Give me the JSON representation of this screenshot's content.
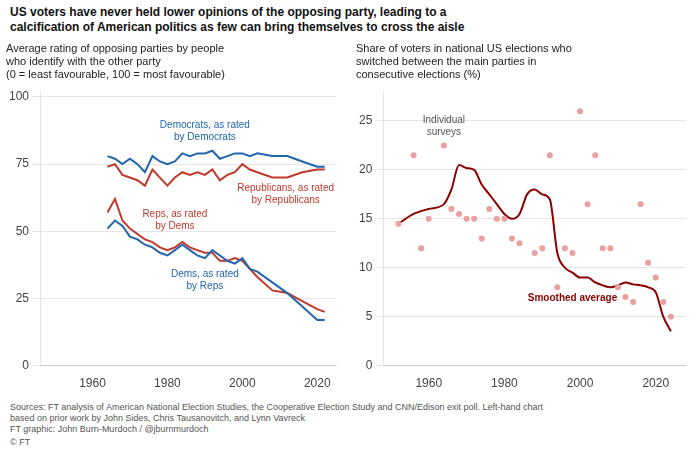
{
  "title": "US voters have never held lower opinions of the opposing party, leading to a\ncalcification of American politics as few can bring themselves to cross the aisle",
  "source": "Sources: FT analysis of American National Election Studies, the Cooperative Election Study and CNN/Edison exit poll. Left-hand chart\nbased on prior work by John Sides, Chris Tausanovitch, and Lynn Vavreck\nFT graphic: John Burn-Murdoch / @jburnmurdoch",
  "footer": "© FT",
  "chart_data": [
    {
      "type": "line",
      "subtitle": "Average rating of opposing parties by people\nwho identify with the other party\n(0 = least favourable, 100 = most favourable)",
      "x": [
        1964,
        1966,
        1968,
        1970,
        1972,
        1974,
        1976,
        1978,
        1980,
        1982,
        1984,
        1986,
        1988,
        1990,
        1992,
        1994,
        1996,
        1998,
        2000,
        2002,
        2004,
        2008,
        2012,
        2016,
        2020,
        2022
      ],
      "series": [
        {
          "name": "Democrats, as rated\nby Democrats",
          "color": "#2166ac",
          "values": [
            78,
            77,
            75,
            77,
            75,
            72,
            78,
            76,
            75,
            76,
            79,
            78,
            79,
            79,
            80,
            77,
            78,
            79,
            79,
            78,
            79,
            78,
            78,
            76,
            74,
            74
          ]
        },
        {
          "name": "Republicans, as rated\nby Republicans",
          "color": "#c0392b",
          "values": [
            74,
            75,
            71,
            70,
            69,
            67,
            73,
            70,
            67,
            70,
            72,
            71,
            72,
            71,
            73,
            69,
            71,
            72,
            75,
            73,
            72,
            70,
            70,
            72,
            73,
            73
          ]
        },
        {
          "name": "Dems, as rated\nby Reps",
          "color": "#2166ac",
          "values": [
            51,
            54,
            52,
            48,
            47,
            45,
            44,
            42,
            41,
            43,
            45,
            43,
            41,
            40,
            43,
            41,
            39,
            38,
            40,
            36,
            35,
            31,
            27,
            22,
            17,
            17
          ]
        },
        {
          "name": "Reps, as rated\nby Dems",
          "color": "#c0392b",
          "values": [
            57,
            62,
            54,
            51,
            49,
            47,
            46,
            44,
            43,
            44,
            46,
            44,
            43,
            42,
            42,
            39,
            39,
            40,
            39,
            36,
            33,
            28,
            27,
            24,
            21,
            20
          ]
        }
      ],
      "xlim": [
        1946,
        2025
      ],
      "xticks": [
        1960,
        1980,
        2000,
        2020
      ],
      "ylim": [
        0,
        102
      ],
      "yticks": [
        0,
        25,
        50,
        75,
        100
      ],
      "grid": true
    },
    {
      "type": "line",
      "subtitle": "Share of voters in national US elections who\nswitched between the main parties in\nconsecutive elections (%)",
      "series": [
        {
          "name": "Individual\nsurveys",
          "type": "scatter",
          "color": "#e8a0a0",
          "x": [
            1952,
            1956,
            1958,
            1960,
            1964,
            1966,
            1968,
            1970,
            1972,
            1974,
            1976,
            1978,
            1980,
            1982,
            1984,
            1988,
            1990,
            1992,
            1994,
            1996,
            1998,
            2000,
            2002,
            2004,
            2006,
            2008,
            2010,
            2012,
            2014,
            2016,
            2018,
            2020,
            2022,
            2024
          ],
          "values": [
            14.5,
            21.5,
            12.0,
            15.0,
            22.5,
            16.0,
            15.5,
            15.0,
            15.0,
            13.0,
            16.0,
            15.0,
            15.0,
            13.0,
            12.5,
            11.5,
            12.0,
            21.5,
            8.0,
            12.0,
            11.5,
            26.0,
            16.5,
            21.5,
            12.0,
            12.0,
            8.0,
            7.0,
            6.5,
            16.5,
            10.5,
            9.0,
            6.5,
            5.0
          ]
        },
        {
          "name": "Smoothed average",
          "type": "line",
          "color": "#8b0000",
          "x": [
            1952,
            1956,
            1960,
            1964,
            1966,
            1968,
            1970,
            1972,
            1974,
            1976,
            1978,
            1980,
            1982,
            1984,
            1986,
            1988,
            1990,
            1992,
            1994,
            1996,
            1998,
            2000,
            2002,
            2004,
            2006,
            2008,
            2010,
            2012,
            2014,
            2016,
            2018,
            2020,
            2022,
            2024
          ],
          "values": [
            14.5,
            15.5,
            16.0,
            16.5,
            18.0,
            20.5,
            20.2,
            20.0,
            18.5,
            17.5,
            16.5,
            15.5,
            15.0,
            15.5,
            17.5,
            18.0,
            17.5,
            17.0,
            11.5,
            10.0,
            9.5,
            9.0,
            9.0,
            8.5,
            8.2,
            8.0,
            8.2,
            8.5,
            8.3,
            8.2,
            8.0,
            7.5,
            5.0,
            3.5
          ]
        }
      ],
      "xlim": [
        1948,
        2028
      ],
      "xticks": [
        1960,
        1980,
        2000,
        2020
      ],
      "ylim": [
        0,
        28
      ],
      "yticks": [
        0,
        5,
        10,
        15,
        20,
        25
      ],
      "grid": true
    }
  ]
}
